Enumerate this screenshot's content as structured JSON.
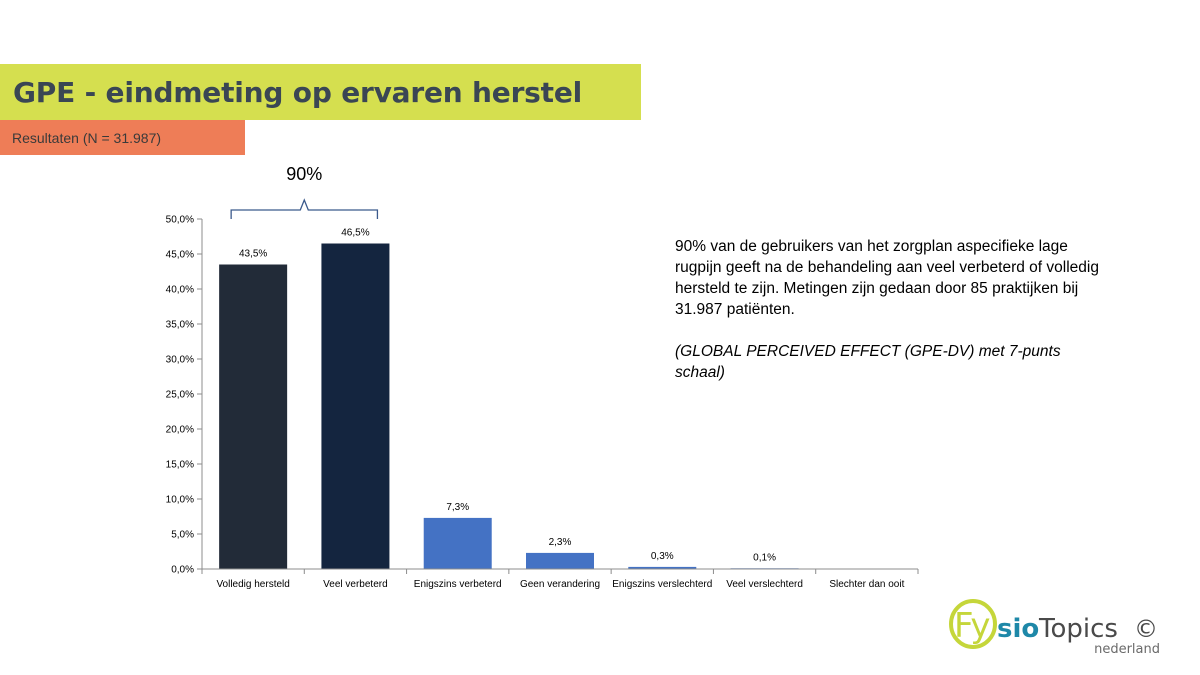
{
  "header": {
    "title": "GPE - eindmeting op ervaren herstel",
    "subtitle": "Resultaten (N = 31.987)"
  },
  "annotation": {
    "bracket_label": "90%"
  },
  "description": {
    "text": "90% van de gebruikers van het zorgplan aspecifieke lage rugpijn geeft na de behandeling aan veel verbeterd of volledig hersteld te zijn. Metingen zijn gedaan door 85 praktijken bij 31.987 patiënten.",
    "scale_note": "(GLOBAL PERCEIVED EFFECT (GPE-DV) met 7-punts schaal)"
  },
  "logo": {
    "part_fy": "Fy",
    "part_sio": "sio",
    "part_topics": "Topics",
    "copyright": "©",
    "tagline": "nederland"
  },
  "colors": {
    "title_band": "#d5df4f",
    "subtitle_band": "#ee7d57",
    "bar_dark1": "#222b38",
    "bar_dark2": "#14253f",
    "bar_blue": "#4472c4"
  },
  "chart_data": {
    "type": "bar",
    "categories": [
      "Volledig hersteld",
      "Veel verbeterd",
      "Enigszins verbeterd",
      "Geen verandering",
      "Enigszins verslechterd",
      "Veel verslechterd",
      "Slechter dan ooit"
    ],
    "values": [
      43.5,
      46.5,
      7.3,
      2.3,
      0.3,
      0.1,
      0
    ],
    "data_labels": [
      "43,5%",
      "46,5%",
      "7,3%",
      "2,3%",
      "0,3%",
      "0,1%",
      ""
    ],
    "bar_colors": [
      "#222b38",
      "#14253f",
      "#4472c4",
      "#4472c4",
      "#4472c4",
      "#4472c4",
      "#4472c4"
    ],
    "ylim": [
      0,
      50
    ],
    "yticks": [
      0,
      5,
      10,
      15,
      20,
      25,
      30,
      35,
      40,
      45,
      50
    ],
    "ytick_labels": [
      "0,0%",
      "5,0%",
      "10,0%",
      "15,0%",
      "20,0%",
      "25,0%",
      "30,0%",
      "35,0%",
      "40,0%",
      "45,0%",
      "50,0%"
    ],
    "grid": false,
    "legend": "none"
  }
}
